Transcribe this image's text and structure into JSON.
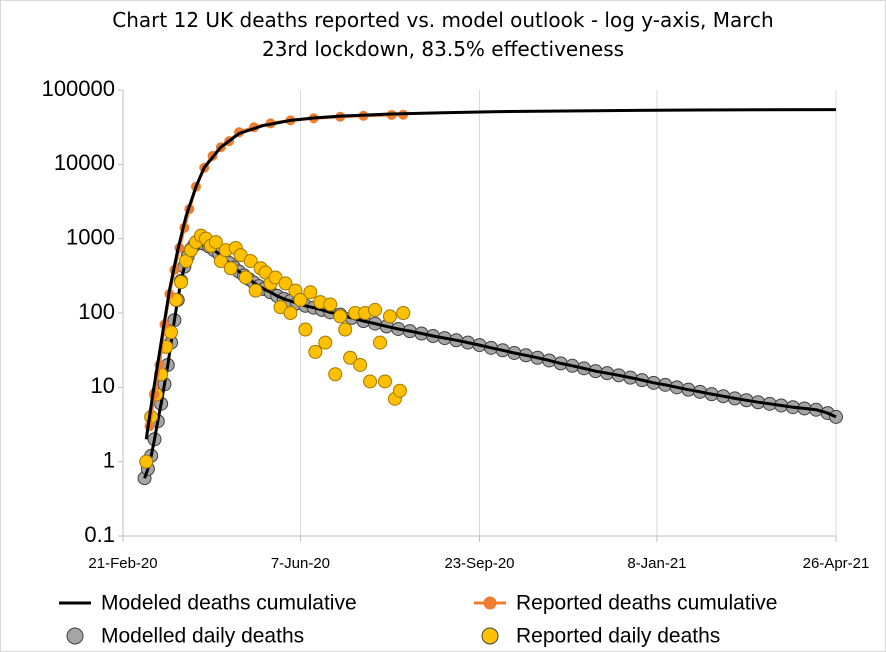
{
  "chart_data": {
    "type": "line",
    "title": "Chart 12 UK deaths reported vs. model outlook - log y-axis, March 23rd lockdown, 83.5% effectiveness",
    "log_y": true,
    "grid": "x",
    "ylim": [
      0.1,
      100000
    ],
    "yticks": [
      0.1,
      1,
      10,
      100,
      1000,
      10000,
      100000
    ],
    "xlim": [
      "2020-02-21",
      "2021-04-26"
    ],
    "xticks": [
      {
        "value": "2020-02-21",
        "label": "21-Feb-20"
      },
      {
        "value": "2020-06-07",
        "label": "7-Jun-20"
      },
      {
        "value": "2020-09-23",
        "label": "23-Sep-20"
      },
      {
        "value": "2021-01-08",
        "label": "8-Jan-21"
      },
      {
        "value": "2021-04-26",
        "label": "26-Apr-21"
      }
    ],
    "legend": "bottom",
    "series": [
      {
        "name": "Modeled deaths cumulative",
        "color": "#000000",
        "style": "line",
        "x": [
          "2020-03-06",
          "2020-03-10",
          "2020-03-15",
          "2020-03-20",
          "2020-03-25",
          "2020-03-30",
          "2020-04-05",
          "2020-04-10",
          "2020-04-20",
          "2020-05-01",
          "2020-05-15",
          "2020-06-01",
          "2020-06-15",
          "2020-07-01",
          "2020-08-01",
          "2020-09-01",
          "2020-10-01",
          "2020-12-01",
          "2021-02-01",
          "2021-04-26"
        ],
        "values": [
          2,
          8,
          40,
          200,
          700,
          2000,
          5000,
          9000,
          17000,
          26000,
          33000,
          39000,
          42000,
          44500,
          47500,
          49500,
          51000,
          52700,
          53800,
          54500
        ]
      },
      {
        "name": "Reported deaths cumulative",
        "color": "#ed7d31",
        "style": "line+markers",
        "x": [
          "2020-03-08",
          "2020-03-11",
          "2020-03-14",
          "2020-03-17",
          "2020-03-20",
          "2020-03-23",
          "2020-03-26",
          "2020-03-29",
          "2020-04-01",
          "2020-04-05",
          "2020-04-10",
          "2020-04-15",
          "2020-04-20",
          "2020-04-25",
          "2020-05-01",
          "2020-05-10",
          "2020-05-20",
          "2020-06-01",
          "2020-06-15",
          "2020-07-01",
          "2020-07-15",
          "2020-08-01",
          "2020-08-08"
        ],
        "values": [
          3,
          8,
          20,
          70,
          180,
          380,
          750,
          1400,
          2500,
          5000,
          9000,
          13000,
          17000,
          20500,
          27000,
          31500,
          35500,
          39000,
          41700,
          43700,
          45000,
          46200,
          46500
        ]
      },
      {
        "name": "Modelled daily deaths",
        "color": "#a5a5a5",
        "style": "markers+line",
        "x": [
          "2020-03-05",
          "2020-03-07",
          "2020-03-09",
          "2020-03-11",
          "2020-03-13",
          "2020-03-15",
          "2020-03-17",
          "2020-03-19",
          "2020-03-21",
          "2020-03-23",
          "2020-03-25",
          "2020-03-27",
          "2020-03-29",
          "2020-03-31",
          "2020-04-02",
          "2020-04-04",
          "2020-04-06",
          "2020-04-08",
          "2020-04-10",
          "2020-04-13",
          "2020-04-16",
          "2020-04-19",
          "2020-04-22",
          "2020-04-25",
          "2020-04-28",
          "2020-05-01",
          "2020-05-04",
          "2020-05-07",
          "2020-05-10",
          "2020-05-13",
          "2020-05-16",
          "2020-05-20",
          "2020-05-24",
          "2020-05-28",
          "2020-06-01",
          "2020-06-05",
          "2020-06-10",
          "2020-06-15",
          "2020-06-20",
          "2020-06-25",
          "2020-07-01",
          "2020-07-08",
          "2020-07-15",
          "2020-07-22",
          "2020-07-29",
          "2020-08-05",
          "2020-08-12",
          "2020-08-19",
          "2020-08-26",
          "2020-09-02",
          "2020-09-09",
          "2020-09-16",
          "2020-09-23",
          "2020-09-30",
          "2020-10-07",
          "2020-10-14",
          "2020-10-21",
          "2020-10-28",
          "2020-11-04",
          "2020-11-11",
          "2020-11-18",
          "2020-11-25",
          "2020-12-02",
          "2020-12-09",
          "2020-12-16",
          "2020-12-23",
          "2020-12-30",
          "2021-01-06",
          "2021-01-13",
          "2021-01-20",
          "2021-01-27",
          "2021-02-03",
          "2021-02-10",
          "2021-02-17",
          "2021-02-24",
          "2021-03-03",
          "2021-03-10",
          "2021-03-17",
          "2021-03-24",
          "2021-03-31",
          "2021-04-07",
          "2021-04-14",
          "2021-04-21",
          "2021-04-26"
        ],
        "values": [
          0.6,
          0.8,
          1.2,
          2,
          3.5,
          6,
          11,
          20,
          40,
          80,
          150,
          270,
          420,
          580,
          720,
          820,
          870,
          880,
          850,
          780,
          700,
          620,
          540,
          470,
          410,
          360,
          320,
          285,
          255,
          230,
          210,
          190,
          170,
          155,
          145,
          135,
          125,
          118,
          110,
          102,
          95,
          86,
          78,
          72,
          66,
          61,
          57,
          53,
          49,
          46,
          43,
          40,
          37,
          34,
          31.5,
          29,
          27,
          25,
          23,
          21,
          19.5,
          18,
          16.5,
          15.5,
          14.5,
          13.5,
          12.5,
          11.5,
          10.8,
          10,
          9.3,
          8.7,
          8.1,
          7.6,
          7.1,
          6.7,
          6.3,
          6,
          5.7,
          5.4,
          5.2,
          5,
          4.5,
          4
        ]
      },
      {
        "name": "Reported daily deaths",
        "color": "#ffc000",
        "style": "markers",
        "x": [
          "2020-03-06",
          "2020-03-09",
          "2020-03-12",
          "2020-03-15",
          "2020-03-18",
          "2020-03-21",
          "2020-03-24",
          "2020-03-27",
          "2020-03-30",
          "2020-04-02",
          "2020-04-05",
          "2020-04-08",
          "2020-04-11",
          "2020-04-14",
          "2020-04-17",
          "2020-04-20",
          "2020-04-23",
          "2020-04-26",
          "2020-04-29",
          "2020-05-02",
          "2020-05-05",
          "2020-05-08",
          "2020-05-11",
          "2020-05-14",
          "2020-05-17",
          "2020-05-20",
          "2020-05-23",
          "2020-05-26",
          "2020-05-29",
          "2020-06-01",
          "2020-06-04",
          "2020-06-07",
          "2020-06-10",
          "2020-06-13",
          "2020-06-16",
          "2020-06-19",
          "2020-06-22",
          "2020-06-25",
          "2020-06-28",
          "2020-07-01",
          "2020-07-04",
          "2020-07-07",
          "2020-07-10",
          "2020-07-13",
          "2020-07-16",
          "2020-07-19",
          "2020-07-22",
          "2020-07-25",
          "2020-07-28",
          "2020-07-31",
          "2020-08-03",
          "2020-08-06",
          "2020-08-08"
        ],
        "values": [
          1,
          4,
          8,
          15,
          35,
          55,
          150,
          260,
          500,
          700,
          900,
          1100,
          1000,
          800,
          900,
          500,
          700,
          400,
          750,
          600,
          300,
          500,
          200,
          400,
          350,
          250,
          300,
          120,
          250,
          100,
          200,
          150,
          60,
          190,
          30,
          140,
          40,
          130,
          15,
          90,
          60,
          25,
          100,
          20,
          100,
          12,
          110,
          40,
          12,
          90,
          7,
          9,
          100
        ]
      }
    ]
  }
}
